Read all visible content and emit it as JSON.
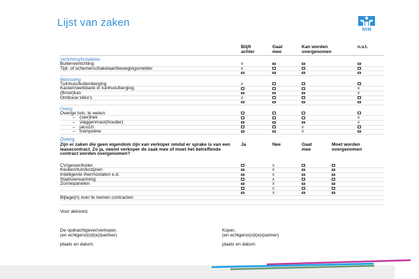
{
  "title": "Lijst van zaken",
  "logo_text": "NVM",
  "colors": {
    "accent": "#2f8fd6",
    "bar_blue": "#1aa0e8",
    "bar_magenta": "#c23a9c",
    "bar_green": "#6a9a72"
  },
  "table1": {
    "headers": [
      "Blijft achter",
      "Gaat mee",
      "Kan worden overgenomen",
      "n.v.t."
    ],
    "sections": [
      {
        "label": "Verlichting/Installaties",
        "rows": [
          {
            "label": "Buitenverlichting",
            "marks": [
              "x",
              "box",
              "box",
              "box"
            ]
          },
          {
            "label": "Tijd- of schemerschakelaar/bewegingsmelder",
            "marks": [
              "x",
              "box",
              "box",
              "box"
            ]
          },
          {
            "label": "",
            "marks": [
              "box",
              "box",
              "box",
              "box"
            ]
          }
        ]
      },
      {
        "label": "Bebouwing",
        "rows": [
          {
            "label": "Tuinhuis/buitenberging",
            "marks": [
              "x",
              "box",
              "box",
              "box"
            ]
          },
          {
            "label": "Kasten/werkbank in tuinhuis/berging",
            "marks": [
              "box",
              "box",
              "box",
              "x"
            ]
          },
          {
            "label": "(Broei)kas",
            "marks": [
              "box",
              "box",
              "box",
              "x"
            ]
          },
          {
            "label": "Ombouw kliko's",
            "marks": [
              "x",
              "box",
              "box",
              "box"
            ]
          },
          {
            "label": "",
            "marks": [
              "box",
              "box",
              "box",
              "box"
            ]
          }
        ]
      },
      {
        "label": "Overig",
        "rows": [
          {
            "label": "Overige tuin, te weten:",
            "marks": [
              "box",
              "box",
              "box",
              "box"
            ]
          },
          {
            "label": "(sier)hek",
            "indent": true,
            "marks": [
              "box",
              "box",
              "box",
              "x"
            ]
          },
          {
            "label": "vlaggenmast(houder)",
            "indent": true,
            "marks": [
              "box",
              "box",
              "box",
              "x"
            ]
          },
          {
            "label": "jacuzzi",
            "indent": true,
            "marks": [
              "box",
              "box",
              "x",
              "box"
            ]
          },
          {
            "label": "trampoline",
            "indent": true,
            "marks": [
              "box",
              "box",
              "x",
              "box"
            ]
          }
        ]
      }
    ]
  },
  "table2": {
    "section": "Overig",
    "question": "Zijn er zaken die geen eigendom zijn van verkoper omdat er sprake is van een leasecontract. Zo ja, neemt verkoper de zaak mee of moet het betreffende contract worden overgenomen?",
    "headers": [
      "Ja",
      "Nee",
      "Gaat mee",
      "Moet worden overgenomen"
    ],
    "rows": [
      {
        "label": "CV/geiser/boiler",
        "marks": [
          "box",
          "x",
          "box",
          "box"
        ]
      },
      {
        "label": "Keuken/tuin/kozijnen",
        "marks": [
          "box",
          "x",
          "box",
          "box"
        ]
      },
      {
        "label": "Intelligente thermostaten e.d.",
        "marks": [
          "box",
          "x",
          "box",
          "box"
        ]
      },
      {
        "label": "Stadsverwarming",
        "marks": [
          "box",
          "x",
          "box",
          "box"
        ]
      },
      {
        "label": "Zonnepanelen",
        "marks": [
          "box",
          "x",
          "box",
          "box"
        ]
      },
      {
        "label": "",
        "marks": [
          "box",
          "x",
          "box",
          "box"
        ]
      },
      {
        "label": "",
        "marks": [
          "box",
          "x",
          "box",
          "box"
        ]
      },
      {
        "label": "Bijlage(n) over te nemen contracten:",
        "marks": []
      }
    ]
  },
  "signatures": {
    "agreement": "Voor akkoord,",
    "seller": "De opdrachtgever/verkoper,",
    "seller_partner": "(en echtgeno(o)t(e)/partner)",
    "buyer": "Koper,",
    "buyer_partner": "(en echtgeno(o)t(e)/partner)",
    "place_date": "plaats en datum:",
    "place_date_buyer": "plaats en datum:"
  }
}
